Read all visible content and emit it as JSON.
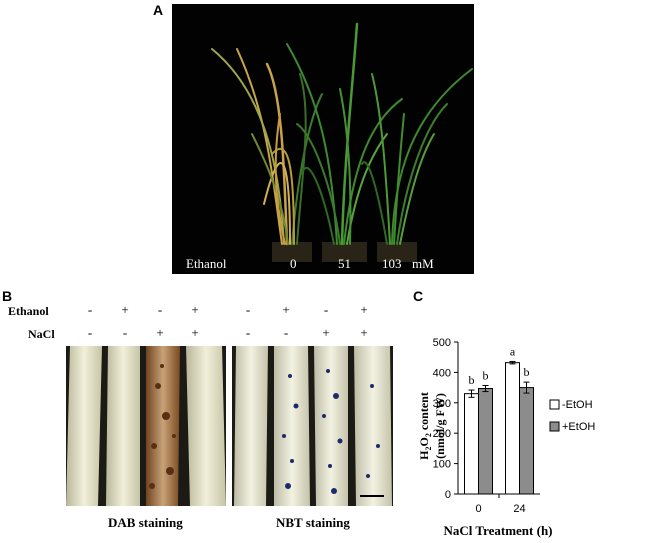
{
  "panel_a": {
    "letter": "A",
    "ethanol_label": "Ethanol",
    "concentrations": [
      "0",
      "51",
      "103"
    ],
    "unit": "mM"
  },
  "panel_b": {
    "letter": "B",
    "rows": [
      {
        "label": "Ethanol",
        "signs": [
          "-",
          "+",
          "-",
          "+"
        ]
      },
      {
        "label": "NaCl",
        "signs": [
          "-",
          "-",
          "+",
          "+"
        ]
      }
    ],
    "dab_caption": "DAB staining",
    "nbt_caption": "NBT staining"
  },
  "panel_c": {
    "letter": "C",
    "colors": {
      "minus_etoh": "#ffffff",
      "plus_etoh": "#8c8c8c"
    }
  },
  "chart_data": {
    "type": "bar",
    "categories": [
      "0",
      "24"
    ],
    "series": [
      {
        "name": "-EtOH",
        "values": [
          330,
          432
        ],
        "errors": [
          12,
          4
        ],
        "letters": [
          "b",
          "a"
        ]
      },
      {
        "name": "+EtOH",
        "values": [
          347,
          350
        ],
        "errors": [
          10,
          18
        ],
        "letters": [
          "b",
          "b"
        ]
      }
    ],
    "ylim": [
      0,
      500
    ],
    "yticks": [
      0,
      100,
      200,
      300,
      400,
      500
    ],
    "ylabel_main": "H",
    "ylabel_sub1": "2",
    "ylabel_mid": "O",
    "ylabel_sub2": "2",
    "ylabel_rest": " content",
    "ylabel_line2": "(nmol/g FW)",
    "xlabel": "NaCl Treatment (h)",
    "legend_position": "right",
    "grid": false
  }
}
